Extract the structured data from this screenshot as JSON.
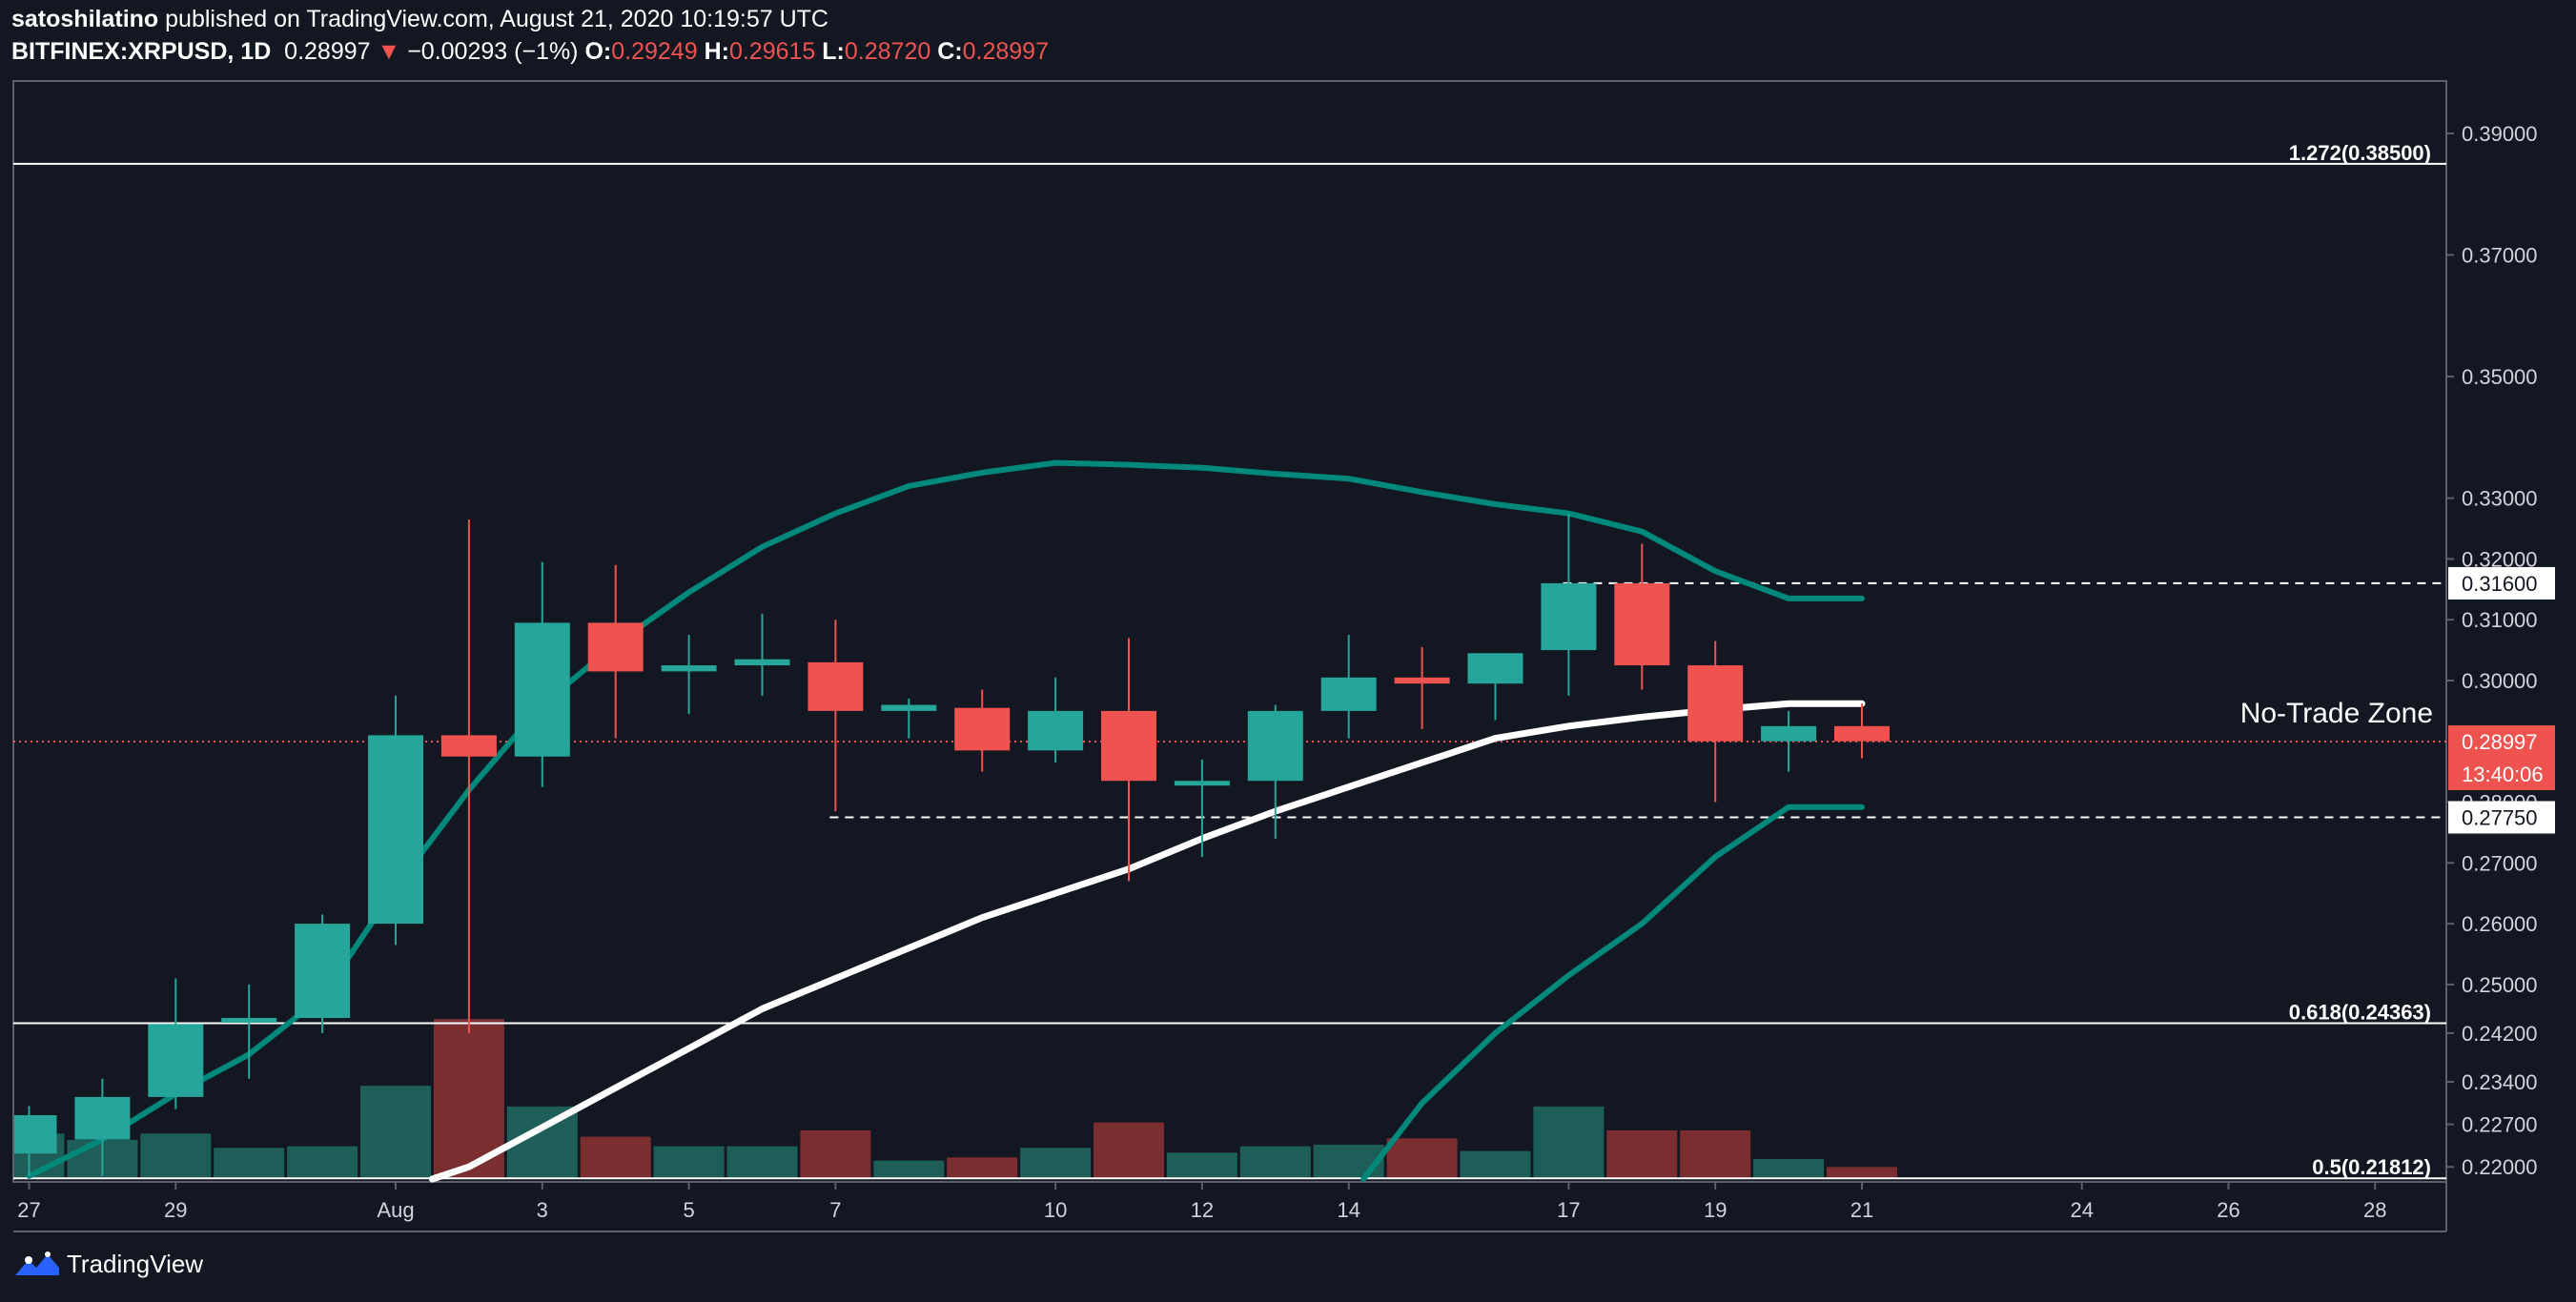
{
  "header": {
    "author": "satoshilatino",
    "published_text": " published on TradingView.com, August 21, 2020 10:19:57 UTC",
    "symbol": "BITFINEX:XRPUSD, 1D",
    "last": "0.28997",
    "arrow": "▼",
    "change": "−0.00293 (−1%)",
    "o_label": "O:",
    "o_value": "0.29249",
    "h_label": "H:",
    "h_value": "0.29615",
    "l_label": "L:",
    "l_value": "0.28720",
    "c_label": "C:",
    "c_value": "0.28997"
  },
  "footer": {
    "brand": "TradingView",
    "logo_icon": "tradingview-logo-icon"
  },
  "colors": {
    "background": "#131722",
    "up": "#26a69a",
    "down": "#ef5350",
    "vol_up": "#1e5e58",
    "vol_down": "#7a2e30",
    "band": "#00897b",
    "mid": "#ffffff",
    "axis_text": "#d1d4dc",
    "frame": "#5d606b"
  },
  "chart_data": {
    "type": "candlestick",
    "symbol": "BITFINEX:XRPUSD",
    "timeframe": "1D",
    "ylim": [
      0.218,
      0.3925
    ],
    "y_ticks": [
      {
        "value": 0.39,
        "label": "0.39000"
      },
      {
        "value": 0.37,
        "label": "0.37000"
      },
      {
        "value": 0.35,
        "label": "0.35000"
      },
      {
        "value": 0.33,
        "label": "0.33000"
      },
      {
        "value": 0.32,
        "label": "0.32000"
      },
      {
        "value": 0.31,
        "label": "0.31000"
      },
      {
        "value": 0.3,
        "label": "0.30000"
      },
      {
        "value": 0.28,
        "label": "0.28000"
      },
      {
        "value": 0.27,
        "label": "0.27000"
      },
      {
        "value": 0.26,
        "label": "0.26000"
      },
      {
        "value": 0.25,
        "label": "0.25000"
      },
      {
        "value": 0.242,
        "label": "0.24200"
      },
      {
        "value": 0.234,
        "label": "0.23400"
      },
      {
        "value": 0.227,
        "label": "0.22700"
      },
      {
        "value": 0.22,
        "label": "0.22000"
      }
    ],
    "x_ticks": [
      {
        "index": 0,
        "label": "27"
      },
      {
        "index": 2,
        "label": "29"
      },
      {
        "index": 5,
        "label": "Aug"
      },
      {
        "index": 7,
        "label": "3"
      },
      {
        "index": 9,
        "label": "5"
      },
      {
        "index": 11,
        "label": "7"
      },
      {
        "index": 14,
        "label": "10"
      },
      {
        "index": 16,
        "label": "12"
      },
      {
        "index": 18,
        "label": "14"
      },
      {
        "index": 21,
        "label": "17"
      },
      {
        "index": 23,
        "label": "19"
      },
      {
        "index": 25,
        "label": "21"
      },
      {
        "index": 28,
        "label": "24"
      },
      {
        "index": 30,
        "label": "26"
      },
      {
        "index": 32,
        "label": "28"
      }
    ],
    "candles": [
      {
        "o": 0.2222,
        "h": 0.23,
        "l": 0.2185,
        "c": 0.2285
      },
      {
        "o": 0.2245,
        "h": 0.2345,
        "l": 0.2185,
        "c": 0.2315
      },
      {
        "o": 0.2315,
        "h": 0.251,
        "l": 0.2295,
        "c": 0.2435
      },
      {
        "o": 0.244,
        "h": 0.25,
        "l": 0.2345,
        "c": 0.2445
      },
      {
        "o": 0.2445,
        "h": 0.2615,
        "l": 0.242,
        "c": 0.26
      },
      {
        "o": 0.26,
        "h": 0.2975,
        "l": 0.2565,
        "c": 0.291
      },
      {
        "o": 0.291,
        "h": 0.3265,
        "l": 0.242,
        "c": 0.2875
      },
      {
        "o": 0.2875,
        "h": 0.3195,
        "l": 0.2825,
        "c": 0.3095
      },
      {
        "o": 0.3095,
        "h": 0.319,
        "l": 0.2905,
        "c": 0.3015
      },
      {
        "o": 0.3015,
        "h": 0.3075,
        "l": 0.2945,
        "c": 0.3025
      },
      {
        "o": 0.3025,
        "h": 0.311,
        "l": 0.2975,
        "c": 0.3035
      },
      {
        "o": 0.303,
        "h": 0.31,
        "l": 0.2785,
        "c": 0.295
      },
      {
        "o": 0.295,
        "h": 0.297,
        "l": 0.2905,
        "c": 0.296
      },
      {
        "o": 0.2955,
        "h": 0.2985,
        "l": 0.285,
        "c": 0.2885
      },
      {
        "o": 0.2885,
        "h": 0.3005,
        "l": 0.2865,
        "c": 0.295
      },
      {
        "o": 0.295,
        "h": 0.307,
        "l": 0.267,
        "c": 0.2835
      },
      {
        "o": 0.2835,
        "h": 0.287,
        "l": 0.271,
        "c": 0.2835
      },
      {
        "o": 0.2835,
        "h": 0.296,
        "l": 0.274,
        "c": 0.295
      },
      {
        "o": 0.295,
        "h": 0.3075,
        "l": 0.2905,
        "c": 0.3005
      },
      {
        "o": 0.3005,
        "h": 0.3055,
        "l": 0.292,
        "c": 0.2995
      },
      {
        "o": 0.2995,
        "h": 0.3045,
        "l": 0.2935,
        "c": 0.3045
      },
      {
        "o": 0.305,
        "h": 0.3275,
        "l": 0.2975,
        "c": 0.316
      },
      {
        "o": 0.316,
        "h": 0.3225,
        "l": 0.2985,
        "c": 0.3025
      },
      {
        "o": 0.3025,
        "h": 0.3065,
        "l": 0.28,
        "c": 0.29
      },
      {
        "o": 0.29,
        "h": 0.295,
        "l": 0.285,
        "c": 0.2925
      },
      {
        "o": 0.2925,
        "h": 0.2962,
        "l": 0.2872,
        "c": 0.29
      }
    ],
    "volume_max": 100,
    "volume": [
      28,
      24,
      28,
      19,
      20,
      58,
      100,
      45,
      26,
      20,
      20,
      30,
      11,
      13,
      19,
      35,
      16,
      20,
      21,
      25,
      17,
      45,
      30,
      30,
      12,
      7
    ],
    "bollinger": {
      "upper": [
        null,
        null,
        null,
        null,
        null,
        null,
        null,
        null,
        null,
        null,
        0.312,
        0.322,
        0.329,
        0.3335,
        0.3355,
        0.3375,
        0.3372,
        0.3365,
        0.335,
        0.3342,
        0.3318,
        0.329,
        0.3272,
        0.3244,
        0.318,
        0.3135,
        0.3135
      ],
      "middle": [
        null,
        null,
        null,
        null,
        null,
        0.219,
        0.224,
        0.232,
        0.24,
        0.249,
        0.2535,
        0.2585,
        0.263,
        0.27,
        0.276,
        0.281,
        0.2858,
        0.291,
        0.295,
        0.2985,
        0.2952,
        0.297,
        0.2965
      ],
      "lower": [
        0.2185,
        0.222,
        0.2245,
        0.2275,
        0.232,
        0.242,
        0.25,
        0.255,
        0.261,
        0.265,
        0.27,
        0.2745,
        0.277,
        0.2785,
        0.2785,
        0.27,
        0.265,
        0.259,
        0.2525,
        0.245,
        0.237,
        0.228,
        0.2185,
        0.2165,
        0.214,
        0.2115,
        0.209
      ],
      "upper_start_index": 0,
      "middle_start_index": 0,
      "lower_start_index": 0
    },
    "bb_upper": [
      {
        "i": 7,
        "v": 0.301
      },
      {
        "i": 8,
        "v": 0.312
      },
      {
        "i": 9,
        "v": 0.322
      },
      {
        "i": 10,
        "v": 0.329
      },
      {
        "i": 11,
        "v": 0.3335
      },
      {
        "i": 12,
        "v": 0.3355
      },
      {
        "i": 13,
        "v": 0.3365
      },
      {
        "i": 14,
        "v": 0.3375
      },
      {
        "i": 15,
        "v": 0.3372
      },
      {
        "i": 16,
        "v": 0.3365
      },
      {
        "i": 17,
        "v": 0.3355
      },
      {
        "i": 18,
        "v": 0.3348
      },
      {
        "i": 19,
        "v": 0.3318
      },
      {
        "i": 20,
        "v": 0.329
      },
      {
        "i": 21,
        "v": 0.3272
      },
      {
        "i": 22,
        "v": 0.3244
      },
      {
        "i": 23,
        "v": 0.318
      },
      {
        "i": 24,
        "v": 0.3135
      },
      {
        "i": 25,
        "v": 0.3135
      }
    ],
    "bb_middle": [
      {
        "i": 5.4,
        "v": 0.218
      },
      {
        "i": 6,
        "v": 0.2215
      },
      {
        "i": 7,
        "v": 0.2285
      },
      {
        "i": 8,
        "v": 0.235
      },
      {
        "i": 9,
        "v": 0.2415
      },
      {
        "i": 10,
        "v": 0.248
      },
      {
        "i": 11,
        "v": 0.253
      },
      {
        "i": 12,
        "v": 0.258
      },
      {
        "i": 13,
        "v": 0.2625
      },
      {
        "i": 14,
        "v": 0.268
      },
      {
        "i": 15,
        "v": 0.272
      },
      {
        "i": 16,
        "v": 0.2765
      },
      {
        "i": 17,
        "v": 0.282
      },
      {
        "i": 18,
        "v": 0.2868
      },
      {
        "i": 19,
        "v": 0.291
      },
      {
        "i": 20,
        "v": 0.295
      },
      {
        "i": 21,
        "v": 0.2997
      },
      {
        "i": 22,
        "v": 0.3025
      },
      {
        "i": 23,
        "v": 0.305
      },
      {
        "i": 24,
        "v": 0.3062
      },
      {
        "i": 25,
        "v": 0.3062
      }
    ],
    "bb_lower": [
      {
        "i": 0,
        "v": 0.2185
      },
      {
        "i": 1,
        "v": 0.2245
      },
      {
        "i": 2,
        "v": 0.232
      },
      {
        "i": 3,
        "v": 0.2385
      },
      {
        "i": 4,
        "v": 0.248
      },
      {
        "i": 5,
        "v": 0.266
      },
      {
        "i": 6,
        "v": 0.282
      },
      {
        "i": 7,
        "v": 0.296
      },
      {
        "i": 8,
        "v": 0.306
      },
      {
        "i": 9,
        "v": 0.3145
      },
      {
        "i": 10,
        "v": 0.322
      },
      {
        "i": 11,
        "v": 0.3275
      },
      {
        "i": 12,
        "v": 0.332
      }
    ],
    "levels": [
      {
        "value": 0.385,
        "label": "1.272(0.38500)",
        "style": "solid"
      },
      {
        "value": 0.24363,
        "label": "0.618(0.24363)",
        "style": "solid"
      },
      {
        "value": 0.21812,
        "label": "0.5(0.21812)",
        "style": "solid"
      }
    ],
    "dashed_lines": [
      {
        "value": 0.316,
        "from_index": 21,
        "label": "0.31600"
      },
      {
        "value": 0.2775,
        "from_index": 11,
        "label": "0.27750"
      }
    ],
    "annotation": "No-Trade Zone",
    "last_price": {
      "value": 0.28997,
      "label": "0.28997",
      "countdown": "13:40:06"
    }
  }
}
